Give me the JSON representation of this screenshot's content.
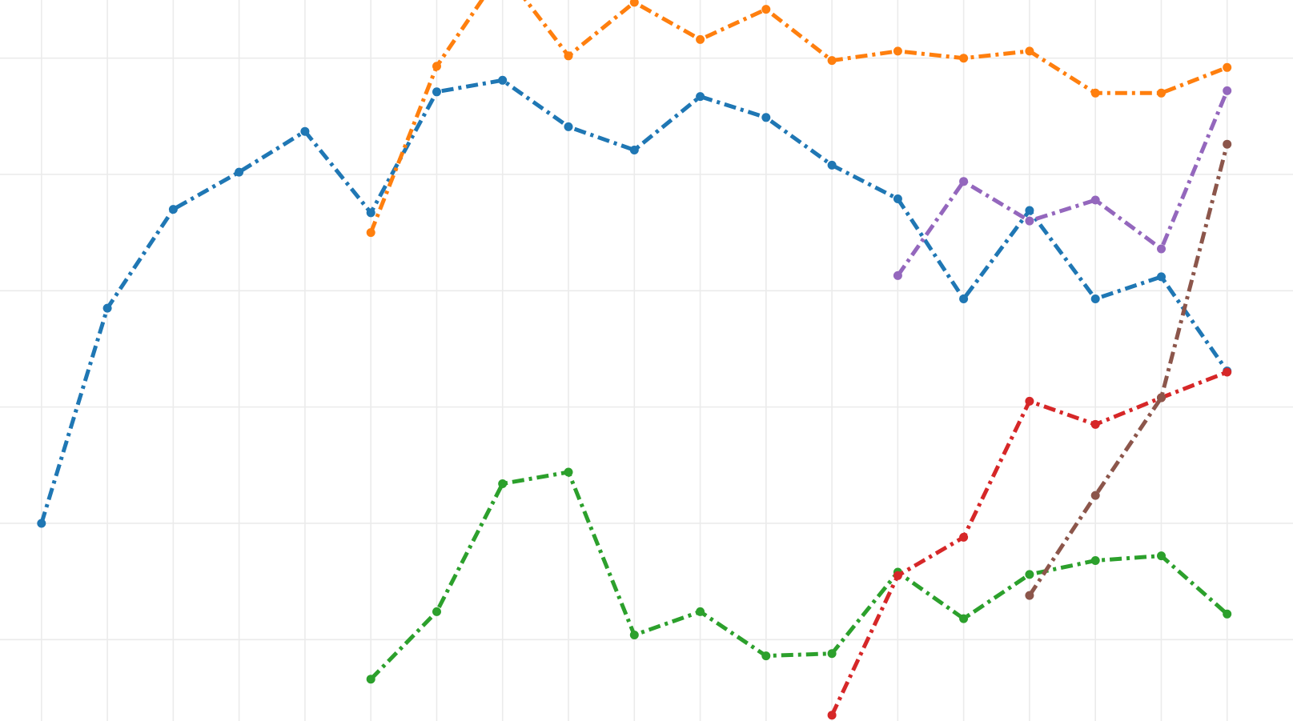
{
  "chart_data": {
    "type": "line",
    "title": "",
    "xlabel": "",
    "ylabel": "",
    "grid": true,
    "x": [
      1,
      2,
      3,
      4,
      5,
      6,
      7,
      8,
      9,
      10,
      11,
      12,
      13,
      14,
      15,
      16,
      17,
      18,
      19
    ],
    "xlim": [
      0.37,
      20.0
    ],
    "ylim": [
      -0.7,
      5.5
    ],
    "line_style": "dash-dot with circle markers",
    "series": [
      {
        "color": "#1f77b4",
        "values": [
          1.0,
          2.85,
          3.7,
          4.02,
          4.37,
          3.67,
          4.71,
          4.81,
          4.41,
          4.21,
          4.67,
          4.49,
          4.08,
          3.79,
          2.93,
          3.69,
          2.93,
          3.12,
          2.31
        ]
      },
      {
        "color": "#ff7f0e",
        "values": [
          null,
          null,
          null,
          null,
          null,
          3.5,
          4.93,
          5.76,
          5.02,
          5.48,
          5.16,
          5.42,
          4.98,
          5.06,
          5.0,
          5.06,
          4.7,
          4.7,
          4.92
        ]
      },
      {
        "color": "#2ca02c",
        "values": [
          null,
          null,
          null,
          null,
          null,
          -0.34,
          0.24,
          1.34,
          1.44,
          0.04,
          0.24,
          -0.14,
          -0.12,
          0.58,
          0.18,
          0.56,
          0.68,
          0.72,
          0.22
        ]
      },
      {
        "color": "#d62728",
        "values": [
          null,
          null,
          null,
          null,
          null,
          null,
          null,
          null,
          null,
          null,
          null,
          null,
          -0.65,
          0.55,
          0.88,
          2.05,
          1.85,
          2.08,
          2.3
        ]
      },
      {
        "color": "#9467bd",
        "values": [
          null,
          null,
          null,
          null,
          null,
          null,
          null,
          null,
          null,
          null,
          null,
          null,
          null,
          3.13,
          3.94,
          3.6,
          3.78,
          3.36,
          4.72
        ]
      },
      {
        "color": "#8c564b",
        "values": [
          null,
          null,
          null,
          null,
          null,
          null,
          null,
          null,
          null,
          null,
          null,
          null,
          null,
          null,
          null,
          0.38,
          1.24,
          2.08,
          4.26
        ]
      }
    ]
  }
}
